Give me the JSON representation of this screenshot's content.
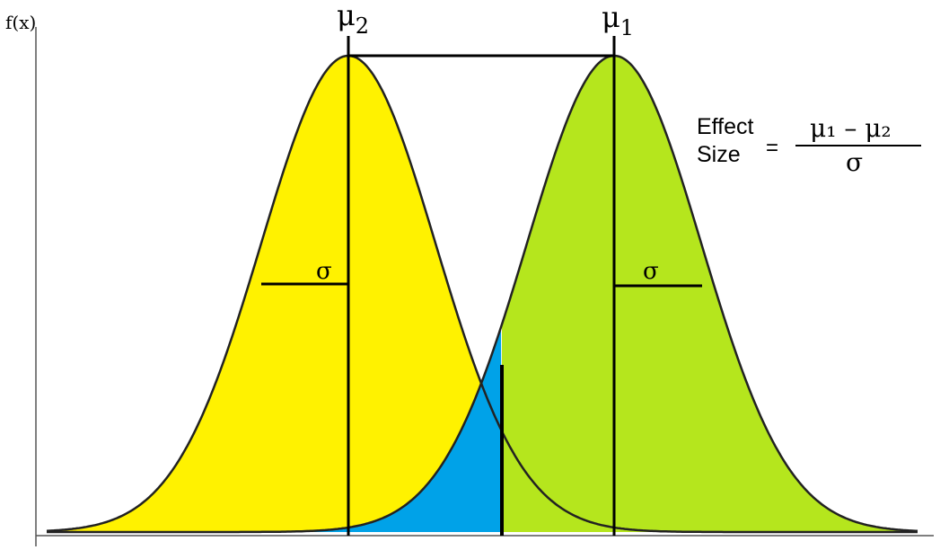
{
  "y_axis_label": "f(x)",
  "mean_left": {
    "symbol": "μ",
    "subscript": "2"
  },
  "mean_right": {
    "symbol": "μ",
    "subscript": "1"
  },
  "sigma_label_left": "σ",
  "sigma_label_right": "σ",
  "formula": {
    "lhs_line1": "Effect",
    "lhs_line2": "Size",
    "equals": "=",
    "numerator": "μ₁ – μ₂",
    "denominator": "σ"
  },
  "colors": {
    "left_curve_fill": "#fff200",
    "right_curve_fill": "#b5e61d",
    "overlap_fill": "#00a2e8",
    "lines": "#000000",
    "axes": "#555555"
  }
}
